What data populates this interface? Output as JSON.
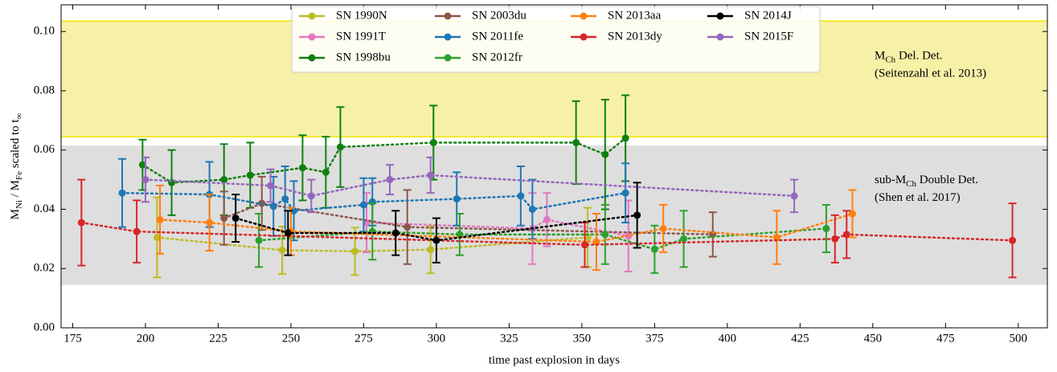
{
  "chart_data": {
    "type": "errorbar",
    "xlabel": "time past explosion in days",
    "ylabel": [
      "M",
      "Ni",
      " / M",
      "Fe",
      " scaled to t",
      "∞"
    ],
    "xlim": [
      171,
      510
    ],
    "ylim": [
      0,
      0.109
    ],
    "xticks": [
      175,
      200,
      225,
      250,
      275,
      300,
      325,
      350,
      375,
      400,
      425,
      450,
      475,
      500
    ],
    "yticks": [
      {
        "value": 0,
        "label": "0.00"
      },
      {
        "value": 0.02,
        "label": "0.02"
      },
      {
        "value": 0.04,
        "label": "0.04"
      },
      {
        "value": 0.06,
        "label": "0.06"
      },
      {
        "value": 0.08,
        "label": "0.08"
      },
      {
        "value": 0.1,
        "label": "0.10"
      }
    ],
    "bands": [
      {
        "ylim": [
          0.0645,
          0.1035
        ],
        "color": "#f7f1a8",
        "edge": "#f2e82a",
        "label": [
          [
            "M",
            "Ch",
            " Del. Det."
          ],
          [
            "(Seitenzahl et al. 2013)"
          ]
        ]
      },
      {
        "ylim": [
          0.0145,
          0.0615
        ],
        "color": "#dedede",
        "label": [
          [
            "sub-M",
            "Ch",
            " Double Det."
          ],
          [
            "(Shen et al. 2017)"
          ]
        ]
      }
    ],
    "series": [
      {
        "name": "SN 1990N",
        "color": "#bcbd22",
        "x": [
          204,
          247,
          272,
          298,
          352
        ],
        "values": [
          0.0305,
          0.0262,
          0.0258,
          0.0264,
          0.0305
        ],
        "errors": [
          0.0135,
          0.008,
          0.008,
          0.008,
          0.01
        ]
      },
      {
        "name": "SN 1991T",
        "color": "#e377c2",
        "x": [
          276,
          333,
          338,
          366
        ],
        "values": [
          0.0355,
          0.0335,
          0.0365,
          0.031
        ],
        "errors": [
          0.01,
          0.012,
          0.009,
          0.012
        ]
      },
      {
        "name": "SN 1998bu",
        "color": "#108010",
        "x": [
          199,
          209,
          227,
          236,
          254,
          262,
          267,
          299,
          348,
          358,
          365
        ],
        "values": [
          0.055,
          0.049,
          0.05,
          0.0515,
          0.054,
          0.0525,
          0.061,
          0.0625,
          0.0625,
          0.0585,
          0.064
        ],
        "errors": [
          0.0085,
          0.011,
          0.012,
          0.011,
          0.011,
          0.012,
          0.0135,
          0.0125,
          0.014,
          0.0185,
          0.0145
        ]
      },
      {
        "name": "SN 2003du",
        "color": "#8c564b",
        "x": [
          227,
          240,
          290,
          395
        ],
        "values": [
          0.037,
          0.042,
          0.034,
          0.0315
        ],
        "errors": [
          0.009,
          0.009,
          0.0125,
          0.0075
        ]
      },
      {
        "name": "SN 2011fe",
        "color": "#1f77b4",
        "x": [
          192,
          222,
          244,
          248,
          251,
          275,
          278,
          307,
          329,
          333,
          365
        ],
        "values": [
          0.0455,
          0.045,
          0.041,
          0.0435,
          0.0395,
          0.0415,
          0.0425,
          0.0435,
          0.0445,
          0.04,
          0.0455
        ],
        "errors": [
          0.0115,
          0.011,
          0.01,
          0.011,
          0.01,
          0.009,
          0.008,
          0.009,
          0.01,
          0.01,
          0.01
        ]
      },
      {
        "name": "SN 2012fr",
        "color": "#2ca02c",
        "x": [
          239,
          278,
          308,
          358,
          375,
          385,
          434
        ],
        "values": [
          0.0295,
          0.0325,
          0.0315,
          0.0315,
          0.0265,
          0.03,
          0.0335
        ],
        "errors": [
          0.009,
          0.0095,
          0.007,
          0.01,
          0.008,
          0.0095,
          0.008
        ]
      },
      {
        "name": "SN 2013aa",
        "color": "#ff7f0e",
        "x": [
          205,
          222,
          250,
          355,
          378,
          417,
          443
        ],
        "values": [
          0.0365,
          0.0355,
          0.0325,
          0.029,
          0.0335,
          0.0305,
          0.0385
        ],
        "errors": [
          0.0115,
          0.0095,
          0.008,
          0.0095,
          0.008,
          0.009,
          0.008
        ]
      },
      {
        "name": "SN 2013dy",
        "color": "#d62728",
        "x": [
          178,
          197,
          351,
          437,
          441,
          498
        ],
        "values": [
          0.0355,
          0.0325,
          0.028,
          0.03,
          0.0315,
          0.0295
        ],
        "errors": [
          0.0145,
          0.0105,
          0.0075,
          0.008,
          0.008,
          0.0125
        ]
      },
      {
        "name": "SN 2014J",
        "color": "#000000",
        "x": [
          231,
          249,
          286,
          300,
          369
        ],
        "values": [
          0.037,
          0.032,
          0.032,
          0.0295,
          0.038
        ],
        "errors": [
          0.008,
          0.0075,
          0.0075,
          0.0075,
          0.011
        ]
      },
      {
        "name": "SN 2015F",
        "color": "#9467bd",
        "x": [
          200,
          243,
          257,
          284,
          298,
          423
        ],
        "values": [
          0.05,
          0.048,
          0.0445,
          0.05,
          0.0515,
          0.0445
        ],
        "errors": [
          0.0075,
          0.0055,
          0.0055,
          0.005,
          0.006,
          0.0055
        ]
      }
    ]
  }
}
